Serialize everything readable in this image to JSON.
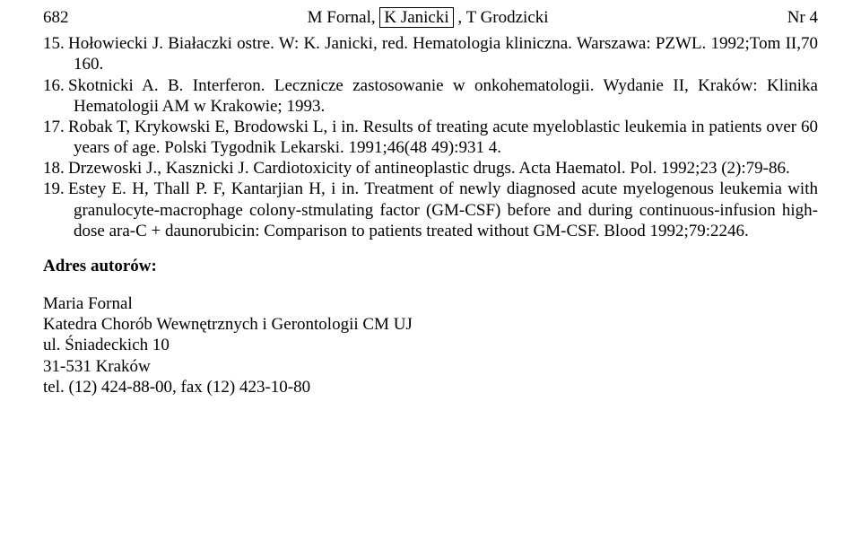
{
  "header": {
    "page_number_left": "682",
    "authors_html": "M Fornal, <span class=\"boxed\">K Janicki</span> , T Grodzicki",
    "issue_right": "Nr 4"
  },
  "references": [
    {
      "num": "15.",
      "text": "Hołowiecki J. Białaczki ostre. W: K. Janicki, red. Hematologia kliniczna. Warszawa: PZWL. 1992;Tom II,70 160."
    },
    {
      "num": "16.",
      "text": "Skotnicki A. B. Interferon. Lecznicze zastosowanie w onkohematologii. Wydanie II, Kraków: Klinika Hematologii AM w Krakowie; 1993."
    },
    {
      "num": "17.",
      "text": "Robak T, Krykowski E, Brodowski L, i in. Results of treating acute myeloblastic leukemia in patients over 60 years of age. Polski Tygodnik Lekarski. 1991;46(48 49):931 4."
    },
    {
      "num": "18.",
      "text": "Drzewoski J., Kasznicki J. Cardiotoxicity of antineoplastic drugs. Acta Haematol. Pol. 1992;23 (2):79-86."
    },
    {
      "num": "19.",
      "text": "Estey E. H, Thall P. F, Kantarjian H, i in. Treatment of newly diagnosed acute myelogenous leukemia with granulocyte-macrophage colony-stmulating factor (GM-CSF) before and during continuous-infusion high-dose ara-C + daunorubicin: Comparison to patients treated without GM-CSF. Blood 1992;79:2246."
    }
  ],
  "address_label": "Adres autorów:",
  "address_lines": [
    "Maria Fornal",
    "Katedra Chorób Wewnętrznych i Gerontologii CM UJ",
    "ul. Śniadeckich 10",
    "31-531 Kraków",
    "tel. (12) 424-88-00, fax (12) 423-10-80"
  ]
}
